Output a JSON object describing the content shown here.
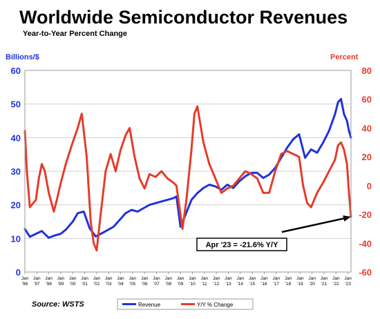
{
  "chart_data": {
    "type": "line",
    "title": "Worldwide Semiconductor Revenues",
    "subtitle": "Year-to-Year Percent Change",
    "y_left_label": "Billions/$",
    "y_right_label": "Percent",
    "y_left_range": [
      0,
      60
    ],
    "y_right_range": [
      -60,
      80
    ],
    "y_left_ticks": [
      "0",
      "10",
      "20",
      "30",
      "40",
      "50",
      "60"
    ],
    "y_right_ticks": [
      "-60",
      "-40",
      "-20",
      "0",
      "20",
      "40",
      "60",
      "80"
    ],
    "x_range": [
      "1996-01",
      "2023-04"
    ],
    "x_tick_top": "Jan",
    "x_ticks": [
      "'96",
      "'97",
      "'98",
      "'99",
      "'00",
      "'01",
      "'02",
      "'03",
      "'04",
      "'05",
      "'06",
      "'07",
      "'08",
      "'09",
      "'10",
      "'11",
      "'12",
      "'13",
      "'14",
      "'15",
      "'16",
      "'17",
      "'18",
      "'19",
      "'20",
      "'21",
      "'22",
      "'23"
    ],
    "grid": "horizontal",
    "source": "Source: WSTS",
    "legend_position": "bottom",
    "annotation": {
      "text": "Apr '23 = -21.6% Y/Y",
      "target_x": "2023-04",
      "target_y_pct": -21.6
    },
    "colors": {
      "revenue": "#1f33d9",
      "yoy": "#e63b2a",
      "left_axis": "#1f33d9",
      "right_axis": "#e63b2a",
      "grid": "#cfcfcf"
    },
    "series": [
      {
        "name": "Revenue",
        "axis": "left",
        "x": [
          "1996-01",
          "1996-06",
          "1997-01",
          "1997-06",
          "1998-01",
          "1998-06",
          "1999-01",
          "1999-06",
          "2000-01",
          "2000-06",
          "2000-12",
          "2001-06",
          "2001-12",
          "2002-06",
          "2002-12",
          "2003-06",
          "2003-12",
          "2004-06",
          "2004-12",
          "2005-06",
          "2005-12",
          "2006-06",
          "2006-12",
          "2007-06",
          "2007-12",
          "2008-06",
          "2008-09",
          "2009-01",
          "2009-06",
          "2009-12",
          "2010-06",
          "2010-12",
          "2011-06",
          "2011-12",
          "2012-06",
          "2012-12",
          "2013-06",
          "2013-12",
          "2014-06",
          "2014-12",
          "2015-06",
          "2015-12",
          "2016-06",
          "2016-12",
          "2017-06",
          "2017-12",
          "2018-06",
          "2018-12",
          "2019-06",
          "2019-12",
          "2020-06",
          "2020-12",
          "2021-06",
          "2021-12",
          "2022-03",
          "2022-06",
          "2022-09",
          "2022-12",
          "2023-02",
          "2023-04"
        ],
        "values": [
          12.8,
          10.5,
          11.5,
          12.2,
          10.2,
          10.8,
          11.4,
          12.6,
          15.0,
          17.5,
          18.0,
          13.0,
          10.6,
          11.5,
          12.5,
          13.5,
          15.5,
          17.5,
          18.5,
          18.0,
          19.0,
          20.0,
          20.5,
          21.0,
          21.5,
          22.0,
          22.5,
          13.5,
          17.0,
          21.5,
          23.5,
          25.0,
          26.0,
          25.5,
          24.5,
          26.0,
          25.0,
          27.0,
          28.5,
          29.5,
          29.5,
          28.0,
          29.0,
          31.0,
          34.0,
          37.0,
          39.5,
          41.0,
          34.0,
          36.5,
          35.5,
          38.5,
          42.0,
          47.0,
          50.5,
          51.5,
          47.0,
          45.0,
          42.0,
          40.0
        ]
      },
      {
        "name": "Y/Y % Change",
        "axis": "right",
        "x": [
          "1996-01",
          "1996-03",
          "1996-06",
          "1996-12",
          "1997-03",
          "1997-06",
          "1997-09",
          "1998-01",
          "1998-06",
          "1998-09",
          "1999-01",
          "1999-06",
          "1999-12",
          "2000-06",
          "2000-10",
          "2001-03",
          "2001-07",
          "2001-10",
          "2002-01",
          "2002-05",
          "2002-10",
          "2003-03",
          "2003-08",
          "2004-01",
          "2004-06",
          "2004-10",
          "2005-03",
          "2005-08",
          "2006-01",
          "2006-06",
          "2006-12",
          "2007-06",
          "2007-12",
          "2008-06",
          "2008-09",
          "2009-01",
          "2009-03",
          "2009-07",
          "2009-12",
          "2010-03",
          "2010-06",
          "2010-12",
          "2011-06",
          "2011-12",
          "2012-06",
          "2012-12",
          "2013-06",
          "2013-12",
          "2014-06",
          "2014-12",
          "2015-06",
          "2015-12",
          "2016-06",
          "2016-12",
          "2017-06",
          "2017-12",
          "2018-06",
          "2018-12",
          "2019-04",
          "2019-08",
          "2019-12",
          "2020-06",
          "2020-12",
          "2021-06",
          "2021-12",
          "2022-03",
          "2022-06",
          "2022-09",
          "2022-12",
          "2023-02",
          "2023-04"
        ],
        "values": [
          38,
          10,
          -15,
          -10,
          5,
          15,
          10,
          -5,
          -18,
          -10,
          2,
          15,
          28,
          40,
          50,
          20,
          -25,
          -40,
          -45,
          -20,
          10,
          22,
          10,
          25,
          35,
          40,
          20,
          5,
          -2,
          8,
          6,
          10,
          5,
          2,
          0,
          -20,
          -30,
          -10,
          25,
          50,
          55,
          30,
          15,
          5,
          -5,
          -2,
          0,
          5,
          10,
          8,
          5,
          -5,
          -5,
          10,
          22,
          24,
          22,
          20,
          0,
          -12,
          -15,
          -5,
          2,
          10,
          18,
          28,
          30,
          25,
          15,
          -5,
          -21.6
        ]
      }
    ]
  }
}
